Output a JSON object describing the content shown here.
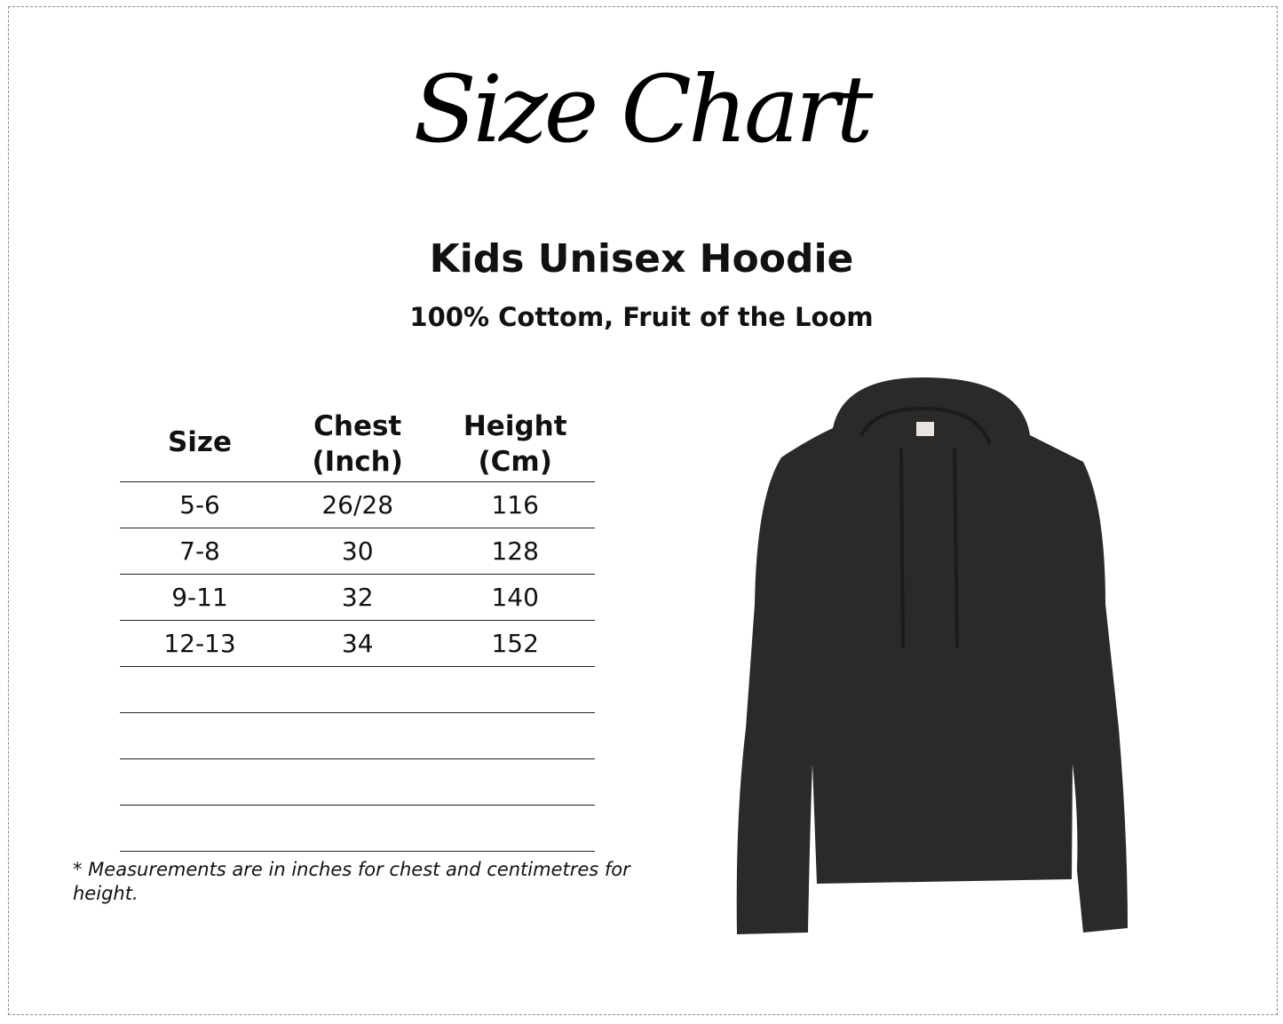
{
  "logo_text": "Size Chart",
  "title": "Kids Unisex Hoodie",
  "subtitle": "100% Cottom, Fruit of the Loom",
  "table": {
    "headers": [
      "Size",
      "Chest (Inch)",
      "Height (Cm)"
    ],
    "rows": [
      [
        "5-6",
        "26/28",
        "116"
      ],
      [
        "7-8",
        "30",
        "128"
      ],
      [
        "9-11",
        "32",
        "140"
      ],
      [
        "12-13",
        "34",
        "152"
      ],
      [
        "",
        "",
        ""
      ],
      [
        "",
        "",
        ""
      ],
      [
        "",
        "",
        ""
      ],
      [
        "",
        "",
        ""
      ]
    ]
  },
  "note": "* Measurements are in inches for chest and centimetres for height.",
  "hoodie_color": "#2b2a29"
}
